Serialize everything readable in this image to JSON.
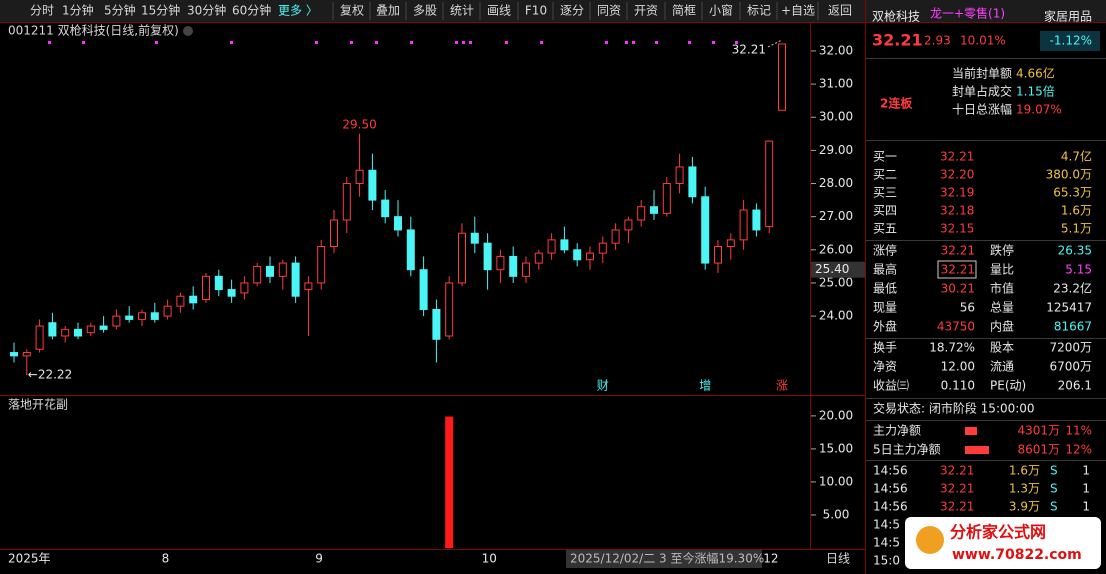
{
  "toolbar": {
    "periods": [
      "分时",
      "1分钟",
      "5分钟",
      "15分钟",
      "30分钟",
      "60分钟",
      "更多 〉"
    ],
    "buttons": [
      "复权",
      "叠加",
      "多股",
      "统计",
      "画线",
      "F10",
      "逐分",
      "同资",
      "开资",
      "简框",
      "小窗",
      "标记",
      "+自选",
      "返回"
    ]
  },
  "chart_data": [
    {
      "type": "candlestick",
      "title": "001211 双枪科技(日线,前复权)",
      "categories": [
        "2025年",
        null,
        null,
        null,
        null,
        null,
        null,
        null,
        null,
        null,
        null,
        null,
        "8",
        null,
        null,
        null,
        null,
        null,
        null,
        null,
        null,
        null,
        null,
        null,
        "9",
        null,
        null,
        null,
        null,
        null,
        null,
        null,
        null,
        null,
        null,
        null,
        null,
        "10",
        null,
        null,
        null,
        null,
        null,
        null,
        null,
        null,
        null,
        null,
        null,
        null,
        null,
        null,
        null,
        null,
        null,
        null,
        null,
        null,
        null,
        "12",
        null
      ],
      "ohlc": [
        [
          22.9,
          23.2,
          22.6,
          22.8
        ],
        [
          22.8,
          23.0,
          22.22,
          22.9
        ],
        [
          23.0,
          23.9,
          22.9,
          23.7
        ],
        [
          23.8,
          24.1,
          23.3,
          23.4
        ],
        [
          23.4,
          23.7,
          23.2,
          23.6
        ],
        [
          23.6,
          23.8,
          23.3,
          23.4
        ],
        [
          23.5,
          23.8,
          23.4,
          23.7
        ],
        [
          23.7,
          24.0,
          23.5,
          23.6
        ],
        [
          23.7,
          24.2,
          23.6,
          24.0
        ],
        [
          24.0,
          24.3,
          23.8,
          23.9
        ],
        [
          23.9,
          24.2,
          23.7,
          24.1
        ],
        [
          24.1,
          24.4,
          23.8,
          23.9
        ],
        [
          24.0,
          24.5,
          23.9,
          24.3
        ],
        [
          24.3,
          24.7,
          24.1,
          24.6
        ],
        [
          24.6,
          24.9,
          24.2,
          24.4
        ],
        [
          24.5,
          25.3,
          24.4,
          25.2
        ],
        [
          25.2,
          25.4,
          24.6,
          24.8
        ],
        [
          24.8,
          25.1,
          24.4,
          24.6
        ],
        [
          24.7,
          25.2,
          24.5,
          25.0
        ],
        [
          25.0,
          25.6,
          24.9,
          25.5
        ],
        [
          25.5,
          25.8,
          25.0,
          25.2
        ],
        [
          25.2,
          25.7,
          24.8,
          25.6
        ],
        [
          25.6,
          25.8,
          24.4,
          24.6
        ],
        [
          24.8,
          25.2,
          23.4,
          25.0
        ],
        [
          25.0,
          26.3,
          24.8,
          26.1
        ],
        [
          26.1,
          27.2,
          25.9,
          26.9
        ],
        [
          26.9,
          28.2,
          26.5,
          28.0
        ],
        [
          28.0,
          29.5,
          27.6,
          28.4
        ],
        [
          28.4,
          28.9,
          27.2,
          27.5
        ],
        [
          27.5,
          27.8,
          26.8,
          27.0
        ],
        [
          27.0,
          27.5,
          26.4,
          26.6
        ],
        [
          26.6,
          27.0,
          25.2,
          25.4
        ],
        [
          25.4,
          25.8,
          24.0,
          24.2
        ],
        [
          24.2,
          24.5,
          22.6,
          23.3
        ],
        [
          23.4,
          25.2,
          23.3,
          25.0
        ],
        [
          25.0,
          26.8,
          24.9,
          26.5
        ],
        [
          26.5,
          27.0,
          25.9,
          26.2
        ],
        [
          26.2,
          26.5,
          24.8,
          25.4
        ],
        [
          25.4,
          26.0,
          25.0,
          25.8
        ],
        [
          25.8,
          26.1,
          25.0,
          25.2
        ],
        [
          25.2,
          25.8,
          25.0,
          25.6
        ],
        [
          25.6,
          26.0,
          25.4,
          25.9
        ],
        [
          25.9,
          26.5,
          25.7,
          26.3
        ],
        [
          26.3,
          26.7,
          25.9,
          26.0
        ],
        [
          26.0,
          26.2,
          25.5,
          25.7
        ],
        [
          25.7,
          26.1,
          25.4,
          25.9
        ],
        [
          25.9,
          26.4,
          25.6,
          26.2
        ],
        [
          26.2,
          26.8,
          26.0,
          26.6
        ],
        [
          26.6,
          27.0,
          26.2,
          26.9
        ],
        [
          26.9,
          27.5,
          26.7,
          27.3
        ],
        [
          27.3,
          27.8,
          26.9,
          27.1
        ],
        [
          27.1,
          28.2,
          27.0,
          28.0
        ],
        [
          28.0,
          28.9,
          27.7,
          28.5
        ],
        [
          28.5,
          28.8,
          27.4,
          27.6
        ],
        [
          27.6,
          27.9,
          25.4,
          25.6
        ],
        [
          25.6,
          26.3,
          25.3,
          26.1
        ],
        [
          26.1,
          26.5,
          25.7,
          26.3
        ],
        [
          26.3,
          27.5,
          26.0,
          27.2
        ],
        [
          27.2,
          27.4,
          26.4,
          26.6
        ],
        [
          26.7,
          29.3,
          26.5,
          29.28
        ],
        [
          30.21,
          32.21,
          30.21,
          32.21
        ]
      ],
      "events": [
        null,
        null,
        null,
        null,
        null,
        null,
        null,
        null,
        null,
        null,
        null,
        null,
        null,
        null,
        null,
        null,
        null,
        null,
        null,
        null,
        null,
        null,
        null,
        null,
        null,
        null,
        null,
        null,
        null,
        null,
        null,
        null,
        null,
        null,
        null,
        null,
        null,
        null,
        null,
        null,
        null,
        null,
        null,
        null,
        null,
        null,
        "财",
        null,
        null,
        null,
        null,
        null,
        null,
        null,
        "增",
        null,
        null,
        null,
        null,
        null,
        "涨"
      ],
      "annotations": [
        {
          "value": 29.5,
          "label": "29.50"
        },
        {
          "value": 32.21,
          "label": "32.21"
        },
        {
          "value": 22.22,
          "label": "←22.22"
        }
      ],
      "ylim": [
        21.68,
        32.33
      ],
      "yticks": [
        {
          "value": 32,
          "label": "32.00"
        },
        {
          "value": 31,
          "label": "31.00"
        },
        {
          "value": 30,
          "label": "30.00"
        },
        {
          "value": 29,
          "label": "29.00"
        },
        {
          "value": 28,
          "label": "28.00"
        },
        {
          "value": 27,
          "label": "27.00"
        },
        {
          "value": 26,
          "label": "26.00"
        },
        {
          "value": 25,
          "label": "25.00"
        },
        {
          "value": 24,
          "label": "24.00"
        }
      ],
      "cursor_price": {
        "value": 25.4,
        "label": "25.40"
      },
      "cursor_date": "2025/12/02/二 3 至今涨幅19.30%",
      "period": "日线"
    },
    {
      "type": "bar",
      "title": "落地开花副",
      "color": "#ff1a1a",
      "values": [
        null,
        null,
        null,
        null,
        null,
        null,
        null,
        null,
        null,
        null,
        null,
        null,
        null,
        null,
        null,
        null,
        null,
        null,
        null,
        null,
        null,
        null,
        null,
        null,
        null,
        null,
        null,
        null,
        null,
        null,
        null,
        null,
        null,
        null,
        19.9,
        null,
        null,
        null,
        null,
        null,
        null,
        null,
        null,
        null,
        null,
        null,
        null,
        null,
        null,
        null,
        null,
        null,
        null,
        null,
        null,
        null,
        null,
        null,
        null,
        null,
        null
      ],
      "ylim": [
        0,
        22.1
      ],
      "yticks": [
        {
          "value": 20,
          "label": "20.00"
        },
        {
          "value": 15,
          "label": "15.00"
        },
        {
          "value": 10,
          "label": "10.00"
        },
        {
          "value": 5,
          "label": "5.00"
        }
      ]
    }
  ],
  "panel": {
    "name": "双枪科技",
    "tag": "龙一+零售(1)",
    "sector": "家居用品",
    "sector_change": "-1.12%",
    "price": "32.21",
    "change": "2.93",
    "pct": "10.01%",
    "badge": "2连板",
    "seal": [
      [
        "当前封单额",
        "4.66亿"
      ],
      [
        "封单占成交",
        "1.15倍"
      ],
      [
        "十日总涨幅",
        "19.07%"
      ]
    ],
    "orderbook": [
      [
        "买一",
        "32.21",
        "4.7亿"
      ],
      [
        "买二",
        "32.20",
        "380.0万"
      ],
      [
        "买三",
        "32.19",
        "65.3万"
      ],
      [
        "买四",
        "32.18",
        "1.6万"
      ],
      [
        "买五",
        "32.15",
        "5.1万"
      ]
    ],
    "stats": [
      [
        "涨停",
        "32.21",
        "跌停",
        "26.35"
      ],
      [
        "最高",
        "32.21",
        "量比",
        "5.15"
      ],
      [
        "最低",
        "30.21",
        "市值",
        "23.2亿"
      ],
      [
        "现量",
        "56",
        "总量",
        "125417"
      ],
      [
        "外盘",
        "43750",
        "内盘",
        "81667"
      ]
    ],
    "stats2": [
      [
        "换手",
        "18.72%",
        "股本",
        "7200万"
      ],
      [
        "净资",
        "12.00",
        "流通",
        "6700万"
      ],
      [
        "收益㈢",
        "0.110",
        "PE(动)",
        "206.1"
      ]
    ],
    "status": "交易状态: 闭市阶段 15:00:00",
    "fund": [
      [
        "主力净额",
        "4301万",
        "11%"
      ],
      [
        "5日主力净额",
        "8601万",
        "12%"
      ]
    ],
    "ticks": [
      [
        "14:56",
        "32.21",
        "1.6万",
        "S",
        "1"
      ],
      [
        "14:56",
        "32.21",
        "1.3万",
        "S",
        "1"
      ],
      [
        "14:56",
        "32.21",
        "3.9万",
        "S",
        "1"
      ]
    ],
    "ticks_cut": [
      "14:5",
      "14:5",
      "15:0"
    ]
  },
  "watermark": {
    "title": "分析家公式网",
    "url": "www.70822.com"
  }
}
